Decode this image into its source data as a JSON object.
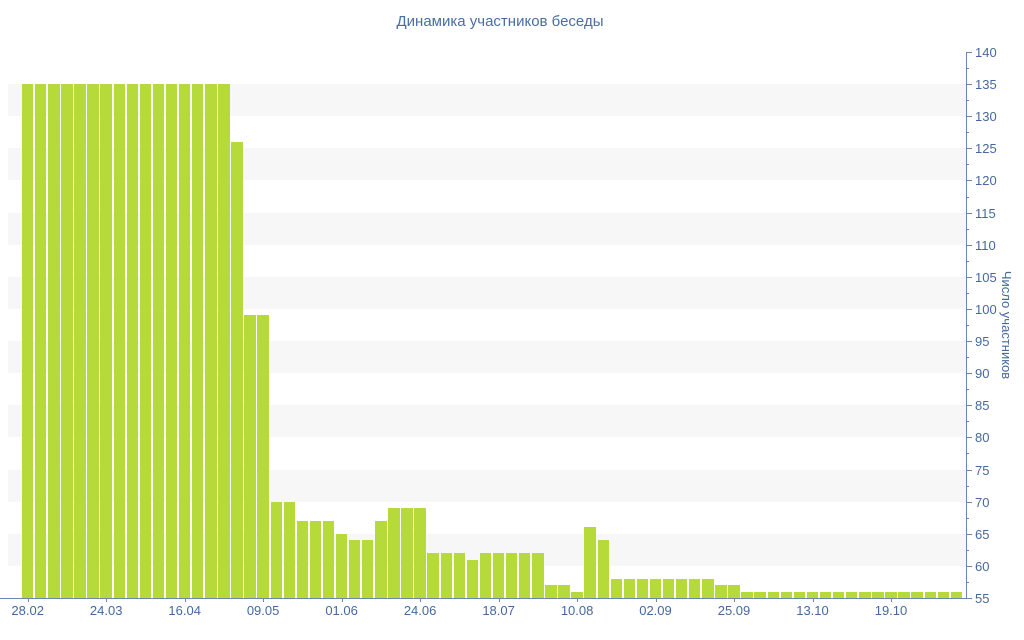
{
  "page": {
    "background": "#ffffff"
  },
  "chart_data": {
    "type": "bar",
    "title": "Динамика участников беседы",
    "ylabel": "Число участников",
    "xlabel": "",
    "ylim": [
      55,
      140
    ],
    "y_tick_step": 5,
    "y_minor_tick_step": 2.5,
    "y_ticks": [
      140,
      135,
      130,
      125,
      120,
      115,
      110,
      105,
      100,
      95,
      90,
      85,
      80,
      75,
      70,
      65,
      60,
      55
    ],
    "x_tick_labels": [
      "28.02",
      "24.03",
      "16.04",
      "09.05",
      "01.06",
      "24.06",
      "18.07",
      "10.08",
      "02.09",
      "25.09",
      "13.10",
      "19.10"
    ],
    "x_label_every_n_bars": 6,
    "values": [
      135,
      135,
      135,
      135,
      135,
      135,
      135,
      135,
      135,
      135,
      135,
      135,
      135,
      135,
      135,
      135,
      126,
      99,
      99,
      70,
      70,
      67,
      67,
      67,
      65,
      64,
      64,
      67,
      69,
      69,
      69,
      62,
      62,
      62,
      61,
      62,
      62,
      62,
      62,
      62,
      57,
      57,
      56,
      66,
      64,
      58,
      58,
      58,
      58,
      58,
      58,
      58,
      58,
      57,
      57,
      56,
      56,
      56,
      56,
      56,
      56,
      56,
      56,
      56,
      56,
      56,
      56,
      56,
      56,
      56,
      56,
      56
    ],
    "legend": "none",
    "grid": "alternating-horizontal-bands",
    "colors": {
      "bar": "#b6da39",
      "axis": "#6c86b0",
      "tick_label": "#46689f",
      "title": "#4a6da4",
      "band": "#f7f7f8",
      "background": "#ffffff"
    }
  }
}
